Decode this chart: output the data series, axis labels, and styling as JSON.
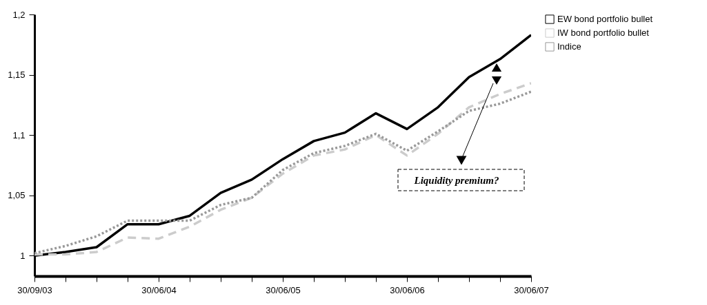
{
  "chart_data": {
    "type": "line",
    "categories": [
      "30/09/03",
      null,
      null,
      null,
      "30/06/04",
      null,
      null,
      null,
      "30/06/05",
      null,
      null,
      null,
      "30/06/06",
      null,
      null,
      null,
      "30/06/07"
    ],
    "series": [
      {
        "name": "EW bond portfolio bullet",
        "color": "#000000",
        "line_style": "solid",
        "values": [
          1.0,
          1.003,
          1.007,
          1.026,
          1.026,
          1.033,
          1.052,
          1.063,
          1.08,
          1.095,
          1.102,
          1.118,
          1.105,
          1.123,
          1.148,
          1.163,
          1.183
        ]
      },
      {
        "name": "IW bond portfolio bullet",
        "color": "#cccccc",
        "line_style": "dashed",
        "values": [
          1.001,
          1.001,
          1.003,
          1.015,
          1.014,
          1.024,
          1.038,
          1.048,
          1.068,
          1.083,
          1.088,
          1.1,
          1.083,
          1.101,
          1.123,
          1.134,
          1.143
        ]
      },
      {
        "name": "Indice",
        "color": "#999999",
        "line_style": "dotted",
        "values": [
          1.002,
          1.008,
          1.016,
          1.029,
          1.029,
          1.029,
          1.042,
          1.048,
          1.071,
          1.085,
          1.091,
          1.101,
          1.087,
          1.103,
          1.12,
          1.126,
          1.136
        ]
      }
    ],
    "ylim": [
      0.983,
      1.2
    ],
    "yticks": [
      1,
      {
        "value": 1.05,
        "label": "1,05"
      },
      {
        "value": 1.1,
        "label": "1,1"
      },
      {
        "value": 1.15,
        "label": "1,15"
      },
      {
        "value": 1.2,
        "label": "1,2"
      }
    ],
    "annotations": [
      "Liquidity premium?"
    ],
    "legend": "top right",
    "grid": false,
    "marker": "none"
  }
}
